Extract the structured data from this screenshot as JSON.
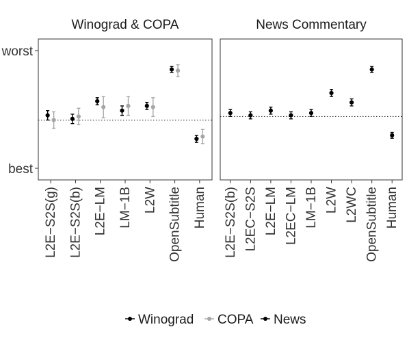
{
  "legend": {
    "entries": [
      {
        "label": "Winograd",
        "color": "#000000"
      },
      {
        "label": "COPA",
        "color": "#a6a6a6"
      },
      {
        "label": "News",
        "color": "#000000"
      }
    ],
    "placement": "bottom"
  },
  "chart_data": [
    {
      "type": "scatter",
      "title": "Winograd & COPA",
      "y_tick_labels": [
        "worst",
        "best"
      ],
      "ylim": [
        0,
        1
      ],
      "reference_line": 0.41,
      "grid": false,
      "categories": [
        "L2E−S2S(g)",
        "L2E−S2S(b)",
        "L2E−LM",
        "LM−1B",
        "L2W",
        "OpenSubtitle",
        "Human"
      ],
      "series": [
        {
          "name": "Winograd",
          "color": "#000000",
          "values": [
            0.45,
            0.42,
            0.57,
            0.49,
            0.53,
            0.84,
            0.25
          ],
          "err": [
            0.04,
            0.04,
            0.03,
            0.04,
            0.03,
            0.025,
            0.03
          ]
        },
        {
          "name": "COPA",
          "color": "#a6a6a6",
          "values": [
            0.41,
            0.44,
            0.52,
            0.53,
            0.52,
            0.83,
            0.27
          ],
          "err": [
            0.07,
            0.07,
            0.09,
            0.08,
            0.08,
            0.05,
            0.06
          ]
        }
      ]
    },
    {
      "type": "scatter",
      "title": "News Commentary",
      "y_tick_labels": [
        "worst",
        "best"
      ],
      "ylim": [
        0,
        1
      ],
      "reference_line": 0.44,
      "grid": false,
      "categories": [
        "L2E−S2S(b)",
        "L2EC−S2S",
        "L2E−LM",
        "L2EC−LM",
        "LM−1B",
        "L2W",
        "L2WC",
        "OpenSubtitle",
        "Human"
      ],
      "series": [
        {
          "name": "News",
          "color": "#000000",
          "values": [
            0.47,
            0.45,
            0.49,
            0.45,
            0.47,
            0.64,
            0.56,
            0.84,
            0.28
          ],
          "err": [
            0.03,
            0.03,
            0.03,
            0.03,
            0.03,
            0.03,
            0.03,
            0.025,
            0.025
          ]
        }
      ]
    }
  ]
}
